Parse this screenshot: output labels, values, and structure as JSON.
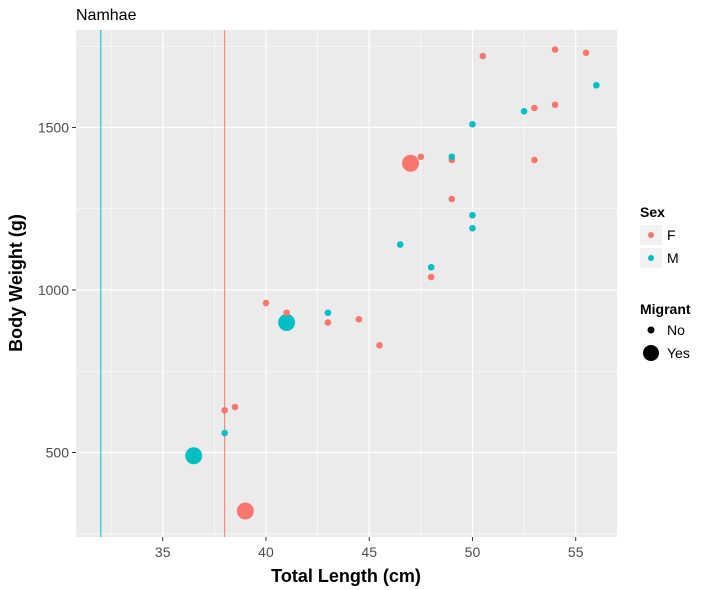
{
  "chart_data": {
    "type": "scatter",
    "title": "Namhae",
    "xlabel": "Total Length (cm)",
    "ylabel": "Body Weight (g)",
    "xlim": [
      30.8,
      57.0
    ],
    "ylim": [
      240,
      1800
    ],
    "x_ticks": [
      35,
      40,
      45,
      50,
      55
    ],
    "y_ticks": [
      500,
      1000,
      1500
    ],
    "grid": true,
    "legend_position": "right",
    "colors": {
      "F": "#F8766D",
      "M": "#00BFC4"
    },
    "vlines": [
      {
        "x": 32,
        "color": "#00BFC4"
      },
      {
        "x": 38,
        "color": "#F8766D"
      }
    ],
    "legend": {
      "sex": {
        "title": "Sex",
        "items": [
          "F",
          "M"
        ]
      },
      "migrant": {
        "title": "Migrant",
        "items": [
          "No",
          "Yes"
        ]
      }
    },
    "points": [
      {
        "x": 39.0,
        "y": 320,
        "sex": "F",
        "migrant": "Yes"
      },
      {
        "x": 47.0,
        "y": 1390,
        "sex": "F",
        "migrant": "Yes"
      },
      {
        "x": 36.5,
        "y": 490,
        "sex": "M",
        "migrant": "Yes"
      },
      {
        "x": 41.0,
        "y": 900,
        "sex": "M",
        "migrant": "Yes"
      },
      {
        "x": 38.0,
        "y": 630,
        "sex": "F",
        "migrant": "No"
      },
      {
        "x": 38.5,
        "y": 640,
        "sex": "F",
        "migrant": "No"
      },
      {
        "x": 38.0,
        "y": 560,
        "sex": "M",
        "migrant": "No"
      },
      {
        "x": 40.0,
        "y": 960,
        "sex": "F",
        "migrant": "No"
      },
      {
        "x": 41.0,
        "y": 930,
        "sex": "F",
        "migrant": "No"
      },
      {
        "x": 43.0,
        "y": 900,
        "sex": "F",
        "migrant": "No"
      },
      {
        "x": 43.0,
        "y": 930,
        "sex": "M",
        "migrant": "No"
      },
      {
        "x": 44.5,
        "y": 910,
        "sex": "F",
        "migrant": "No"
      },
      {
        "x": 45.5,
        "y": 830,
        "sex": "F",
        "migrant": "No"
      },
      {
        "x": 46.5,
        "y": 1140,
        "sex": "M",
        "migrant": "No"
      },
      {
        "x": 47.5,
        "y": 1410,
        "sex": "F",
        "migrant": "No"
      },
      {
        "x": 48.0,
        "y": 1040,
        "sex": "F",
        "migrant": "No"
      },
      {
        "x": 48.0,
        "y": 1070,
        "sex": "M",
        "migrant": "No"
      },
      {
        "x": 49.0,
        "y": 1280,
        "sex": "F",
        "migrant": "No"
      },
      {
        "x": 49.0,
        "y": 1400,
        "sex": "F",
        "migrant": "No"
      },
      {
        "x": 49.0,
        "y": 1410,
        "sex": "M",
        "migrant": "No"
      },
      {
        "x": 50.0,
        "y": 1190,
        "sex": "M",
        "migrant": "No"
      },
      {
        "x": 50.0,
        "y": 1230,
        "sex": "M",
        "migrant": "No"
      },
      {
        "x": 50.0,
        "y": 1510,
        "sex": "M",
        "migrant": "No"
      },
      {
        "x": 50.5,
        "y": 1720,
        "sex": "F",
        "migrant": "No"
      },
      {
        "x": 52.5,
        "y": 1550,
        "sex": "M",
        "migrant": "No"
      },
      {
        "x": 53.0,
        "y": 1560,
        "sex": "F",
        "migrant": "No"
      },
      {
        "x": 53.0,
        "y": 1400,
        "sex": "F",
        "migrant": "No"
      },
      {
        "x": 54.0,
        "y": 1570,
        "sex": "F",
        "migrant": "No"
      },
      {
        "x": 54.0,
        "y": 1740,
        "sex": "F",
        "migrant": "No"
      },
      {
        "x": 55.5,
        "y": 1730,
        "sex": "F",
        "migrant": "No"
      },
      {
        "x": 56.0,
        "y": 1630,
        "sex": "M",
        "migrant": "No"
      }
    ]
  }
}
